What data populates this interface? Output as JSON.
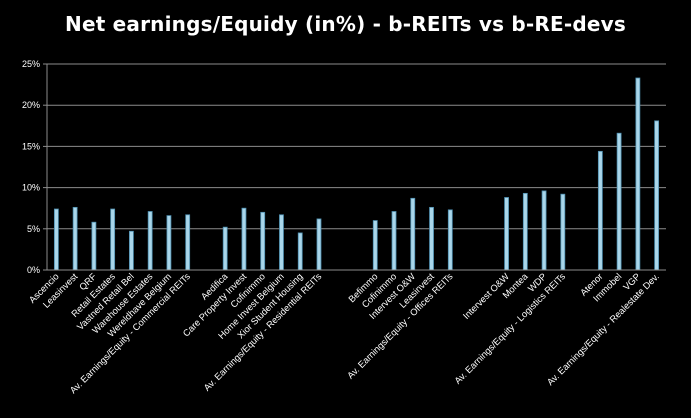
{
  "chart_data": {
    "type": "bar",
    "title": "Net earnings/Equidy (in%) - b-REITs vs b-RE-devs",
    "xlabel": "",
    "ylabel": "",
    "ylim": [
      0,
      25
    ],
    "y_ticks": [
      "0%",
      "5%",
      "10%",
      "15%",
      "20%",
      "25%"
    ],
    "grid": "horizontal",
    "legend": "none",
    "colors": {
      "background": "#000000",
      "bar_fill": "#a9d6ea",
      "bar_edge": "#4e8fb0",
      "grid": "#8c8c8c",
      "text": "#ffffff"
    },
    "categories": [
      "Ascencio",
      "Leasinvest",
      "QRF",
      "Retail Estates",
      "Vastned Retail Bel",
      "Warehouse Estates",
      "Wereldhave Belgium",
      "Av. Earnings/Equity - Commercial REITs",
      "",
      "Aedifica",
      "Care Property Invest",
      "Cofinimmo",
      "Home Invest Belgium",
      "Xior Student Housing",
      "Av. Earnings/Equity - Residential REITs",
      "",
      "",
      "Befimmo",
      "Cofinimmo",
      "Intervest O&W",
      "Leasinvest",
      "Av. Earnings/Equity - Offices REITs",
      "",
      "",
      "Intervest O&W",
      "Montea",
      "WDP",
      "Av. Earnings/Equity - Logistics REITs",
      "",
      "Atenor",
      "Immobel",
      "VGP",
      "Av. Earnings/Equity - Realestate Dev."
    ],
    "values": [
      7.4,
      7.6,
      5.8,
      7.4,
      4.7,
      7.1,
      6.6,
      6.7,
      null,
      5.2,
      7.5,
      7.0,
      6.7,
      4.5,
      6.2,
      null,
      null,
      6.0,
      7.1,
      8.7,
      7.6,
      7.3,
      null,
      null,
      8.8,
      9.3,
      9.6,
      9.2,
      null,
      14.4,
      16.6,
      23.3,
      18.1
    ]
  }
}
